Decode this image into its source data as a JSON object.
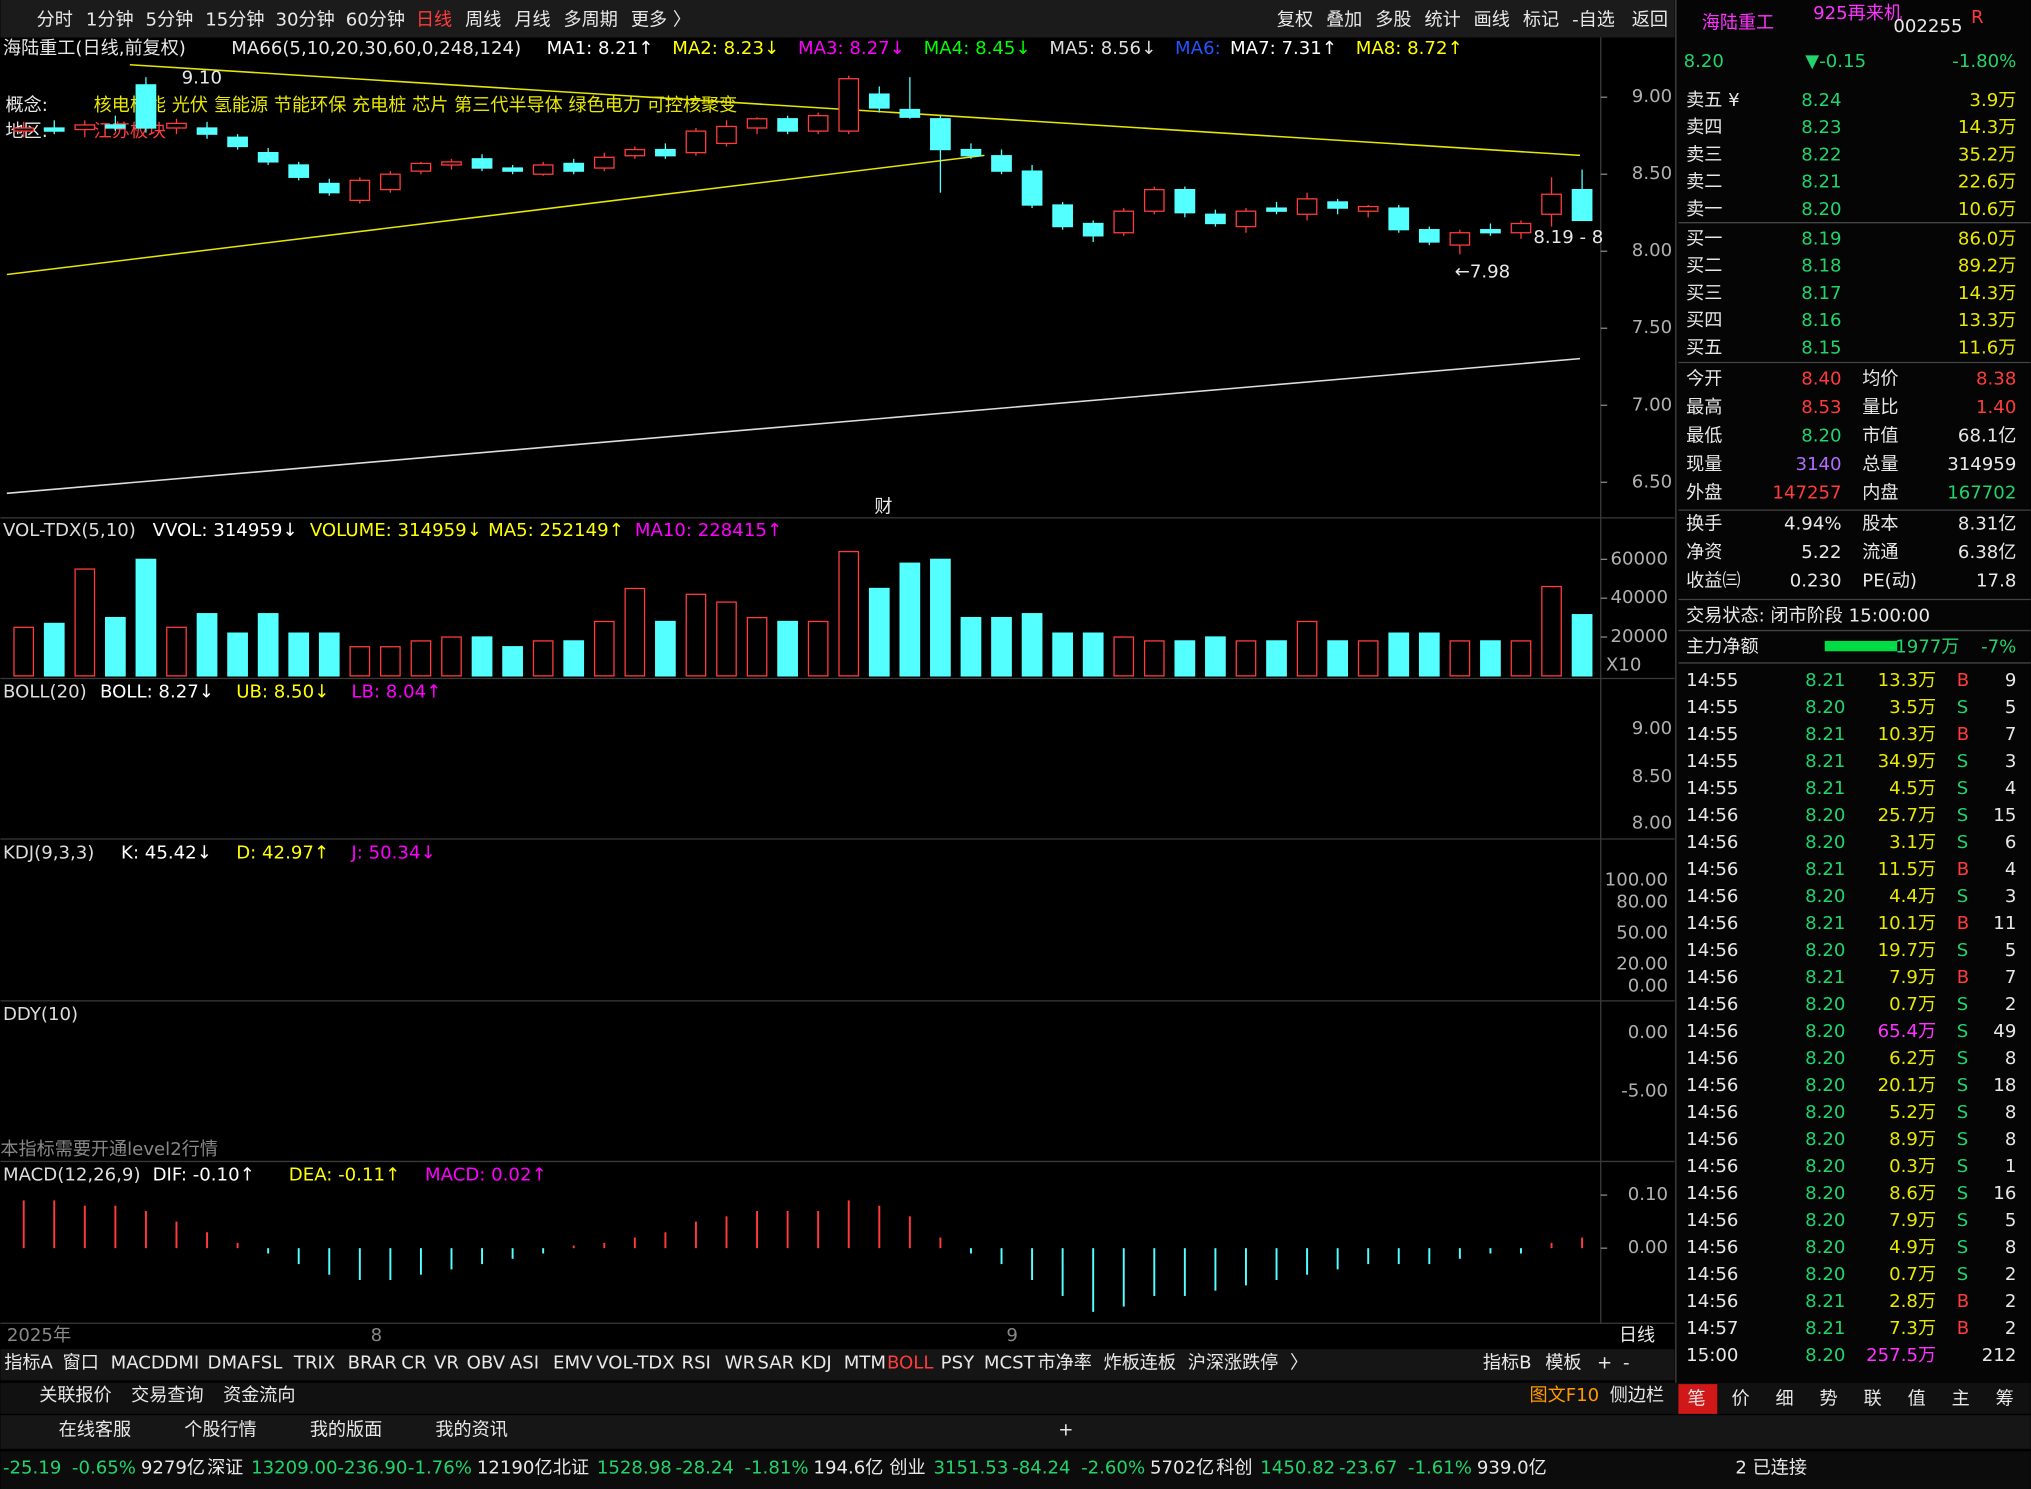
{
  "toolbar": {
    "periods": [
      "分时",
      "1分钟",
      "5分钟",
      "15分钟",
      "30分钟",
      "60分钟",
      "日线",
      "周线",
      "月线",
      "多周期",
      "更多 〉"
    ],
    "active": 6,
    "tools": [
      "复权",
      "叠加",
      "多股",
      "统计",
      "画线",
      "标记",
      "-自选",
      "返回"
    ]
  },
  "price_chart": {
    "title": "海陆重工(日线,前复权)",
    "ma_params": "MA66(5,10,20,30,60,0,248,124)",
    "ma": [
      {
        "text": "MA1: 8.21↑",
        "color": "#ffffff"
      },
      {
        "text": "MA2: 8.23↓",
        "color": "#ffff00"
      },
      {
        "text": "MA3: 8.27↓",
        "color": "#ff00ff"
      },
      {
        "text": "MA4: 8.45↓",
        "color": "#00ff00"
      },
      {
        "text": "MA5: 8.56↓",
        "color": "#dddddd"
      },
      {
        "text": "MA6:",
        "color": "#2255ff"
      },
      {
        "text": "MA7: 7.31↑",
        "color": "#ffffff"
      },
      {
        "text": "MA8: 8.72↑",
        "color": "#ffff00"
      }
    ],
    "concept_label": "概念:",
    "concepts": "核电核能 光伏 氢能源 节能环保 充电桩 芯片 第三代半导体 绿色电力 可控核聚变",
    "region_label": "地区:",
    "region": "江苏板块",
    "annotations": {
      "high": "9.10",
      "low": "←7.98",
      "last": "8.19 - 8",
      "finance": "财"
    },
    "open": [
      8.78,
      8.8,
      8.79,
      8.82,
      9.08,
      8.8,
      8.8,
      8.74,
      8.64,
      8.56,
      8.44,
      8.33,
      8.4,
      8.52,
      8.56,
      8.6,
      8.54,
      8.5,
      8.57,
      8.54,
      8.62,
      8.66,
      8.64,
      8.7,
      8.8,
      8.86,
      8.78,
      8.78,
      9.02,
      8.92,
      8.86,
      8.66,
      8.62,
      8.52,
      8.3,
      8.18,
      8.12,
      8.26,
      8.4,
      8.24,
      8.16,
      8.28,
      8.24,
      8.32,
      8.26,
      8.28,
      8.14,
      8.04,
      8.14,
      8.12,
      8.24,
      8.4
    ],
    "high": [
      8.84,
      8.85,
      8.85,
      8.88,
      9.13,
      8.86,
      8.84,
      8.76,
      8.67,
      8.58,
      8.47,
      8.48,
      8.52,
      8.58,
      8.6,
      8.63,
      8.56,
      8.58,
      8.6,
      8.64,
      8.68,
      8.7,
      8.8,
      8.85,
      8.87,
      8.88,
      8.9,
      9.14,
      9.07,
      9.13,
      8.88,
      8.7,
      8.66,
      8.56,
      8.32,
      8.2,
      8.28,
      8.42,
      8.42,
      8.27,
      8.28,
      8.32,
      8.38,
      8.34,
      8.3,
      8.3,
      8.16,
      8.14,
      8.18,
      8.2,
      8.48,
      8.53
    ],
    "low": [
      8.74,
      8.76,
      8.74,
      8.78,
      8.77,
      8.76,
      8.73,
      8.66,
      8.56,
      8.46,
      8.36,
      8.31,
      8.38,
      8.5,
      8.53,
      8.52,
      8.5,
      8.49,
      8.5,
      8.52,
      8.6,
      8.6,
      8.62,
      8.68,
      8.76,
      8.76,
      8.76,
      8.76,
      8.9,
      8.86,
      8.38,
      8.6,
      8.5,
      8.28,
      8.14,
      8.06,
      8.1,
      8.24,
      8.22,
      8.16,
      8.12,
      8.24,
      8.2,
      8.24,
      8.22,
      8.12,
      8.04,
      7.98,
      8.1,
      8.08,
      8.16,
      8.2
    ],
    "close": [
      8.8,
      8.78,
      8.82,
      8.8,
      8.8,
      8.83,
      8.76,
      8.68,
      8.58,
      8.48,
      8.38,
      8.46,
      8.5,
      8.57,
      8.58,
      8.54,
      8.52,
      8.56,
      8.52,
      8.61,
      8.66,
      8.62,
      8.78,
      8.81,
      8.86,
      8.78,
      8.88,
      9.12,
      8.93,
      8.87,
      8.66,
      8.62,
      8.52,
      8.3,
      8.16,
      8.1,
      8.26,
      8.4,
      8.25,
      8.18,
      8.26,
      8.26,
      8.34,
      8.28,
      8.29,
      8.14,
      8.06,
      8.12,
      8.12,
      8.18,
      8.37,
      8.2
    ],
    "ylim": [
      6.42,
      9.32
    ],
    "yticks": [
      {
        "value": 6.5,
        "label": "6.50"
      },
      {
        "value": 7,
        "label": "7.00"
      },
      {
        "value": 7.5,
        "label": "7.50"
      },
      {
        "value": 8,
        "label": "8.00"
      },
      {
        "value": 8.5,
        "label": "8.50"
      },
      {
        "value": 9,
        "label": "9.00"
      }
    ]
  },
  "volume": {
    "header": [
      {
        "text": "VOL-TDX(5,10)",
        "color": "#dddddd"
      },
      {
        "text": "VVOL: 314959↓",
        "color": "#ffffff"
      },
      {
        "text": "VOLUME: 314959↓",
        "color": "#ffff00"
      },
      {
        "text": "MA5: 252149↑",
        "color": "#ffff00"
      },
      {
        "text": "MA10: 228415↑",
        "color": "#ff00ff"
      }
    ],
    "values": [
      25000,
      27000,
      55000,
      30000,
      60000,
      25000,
      32000,
      22000,
      32000,
      22000,
      22000,
      15000,
      15000,
      18000,
      20000,
      20000,
      15000,
      18000,
      18000,
      28000,
      45000,
      28000,
      42000,
      38000,
      30000,
      28000,
      28000,
      64000,
      45000,
      58000,
      60000,
      30000,
      30000,
      32000,
      22000,
      22000,
      20000,
      18000,
      18000,
      20000,
      18000,
      18000,
      28000,
      18000,
      18000,
      22000,
      22000,
      18000,
      18000,
      18000,
      46000,
      31496
    ],
    "ylim": [
      0,
      66000
    ],
    "yticks": [
      20000,
      40000,
      60000
    ],
    "multiplier": "X10"
  },
  "boll": {
    "header": [
      {
        "text": "BOLL(20)",
        "color": "#dddddd"
      },
      {
        "text": "BOLL: 8.27↓",
        "color": "#ffffff"
      },
      {
        "text": "UB: 8.50↓",
        "color": "#ffff00"
      },
      {
        "text": "LB: 8.04↑",
        "color": "#ff00ff"
      }
    ],
    "ticks": [
      "9.00",
      "8.50",
      "8.00"
    ]
  },
  "kdj": {
    "header": [
      {
        "text": "KDJ(9,3,3)",
        "color": "#dddddd"
      },
      {
        "text": "K: 45.42↓",
        "color": "#ffffff"
      },
      {
        "text": "D: 42.97↑",
        "color": "#ffff00"
      },
      {
        "text": "J: 50.34↓",
        "color": "#ff00ff"
      }
    ],
    "ticks": [
      "100.00",
      "80.00",
      "50.00",
      "20.00",
      "0.00"
    ]
  },
  "ddy": {
    "header": [
      {
        "text": "DDY(10)",
        "color": "#dddddd"
      }
    ],
    "ticks": [
      "0.00",
      "-5.00"
    ],
    "notice": "本指标需要开通level2行情"
  },
  "macd": {
    "header": [
      {
        "text": "MACD(12,26,9)",
        "color": "#dddddd"
      },
      {
        "text": "DIF: -0.10↑",
        "color": "#ffffff"
      },
      {
        "text": "DEA: -0.11↑",
        "color": "#ffff00"
      },
      {
        "text": "MACD: 0.02↑",
        "color": "#ff00ff"
      }
    ],
    "values": [
      0.09,
      0.09,
      0.08,
      0.08,
      0.07,
      0.05,
      0.03,
      0.01,
      -0.01,
      -0.03,
      -0.05,
      -0.06,
      -0.06,
      -0.05,
      -0.04,
      -0.03,
      -0.02,
      -0.01,
      0.005,
      0.01,
      0.02,
      0.03,
      0.05,
      0.06,
      0.07,
      0.07,
      0.07,
      0.09,
      0.08,
      0.06,
      0.02,
      -0.01,
      -0.03,
      -0.06,
      -0.09,
      -0.12,
      -0.11,
      -0.09,
      -0.09,
      -0.08,
      -0.07,
      -0.06,
      -0.05,
      -0.04,
      -0.03,
      -0.03,
      -0.03,
      -0.02,
      -0.01,
      -0.01,
      0.01,
      0.02
    ],
    "ylim": [
      -0.14,
      0.15
    ],
    "yticks": [
      {
        "value": 0,
        "label": "0.00"
      },
      {
        "value": 0.1,
        "label": "0.10"
      }
    ]
  },
  "x_axis": {
    "year": "2025年",
    "months": [
      "8",
      "9"
    ],
    "period": "日线"
  },
  "indicator_tabs": {
    "items": [
      "指标A",
      "窗口",
      "MACD",
      "DMI",
      "DMA",
      "FSL",
      "TRIX",
      "BRAR",
      "CR",
      "VR",
      "OBV",
      "ASI",
      "EMV",
      "VOL-TDX",
      "RSI",
      "WR",
      "SAR",
      "KDJ",
      "MTM",
      "BOLL",
      "PSY",
      "MCST",
      "市净率",
      "炸板连板",
      "沪深涨跌停",
      "〉"
    ],
    "active": 19,
    "right": [
      "指标B",
      "模板",
      "+",
      "-"
    ]
  },
  "bottom_links": [
    "关联报价",
    "交易查询",
    "资金流向"
  ],
  "bottom_right": [
    "图文F10",
    "侧边栏"
  ],
  "service_links": [
    "在线客服",
    "个股行情",
    "我的版面",
    "我的资讯"
  ],
  "status_bar": [
    {
      "text": "-25.19",
      "tone": "down"
    },
    {
      "text": "-0.65%",
      "tone": "down"
    },
    {
      "text": "9279亿",
      "tone": "flat"
    },
    {
      "text": "深证",
      "tone": "flat"
    },
    {
      "text": "13209.00-236.90",
      "tone": "down"
    },
    {
      "text": "-1.76%",
      "tone": "down"
    },
    {
      "text": "12190亿",
      "tone": "flat"
    },
    {
      "text": "北证",
      "tone": "flat"
    },
    {
      "text": "1528.98",
      "tone": "down"
    },
    {
      "text": "-28.24",
      "tone": "down"
    },
    {
      "text": "-1.81%",
      "tone": "down"
    },
    {
      "text": "194.6亿",
      "tone": "flat"
    },
    {
      "text": "创业",
      "tone": "flat"
    },
    {
      "text": "3151.53",
      "tone": "down"
    },
    {
      "text": "-84.24",
      "tone": "down"
    },
    {
      "text": "-2.60%",
      "tone": "down"
    },
    {
      "text": "5702亿",
      "tone": "flat"
    },
    {
      "text": "科创",
      "tone": "flat"
    },
    {
      "text": "1450.82",
      "tone": "down"
    },
    {
      "text": "-23.67",
      "tone": "down"
    },
    {
      "text": "-1.61%",
      "tone": "down"
    },
    {
      "text": "939.0亿",
      "tone": "flat"
    }
  ],
  "connection": "2 已连接",
  "quote": {
    "name": "海陆重工",
    "tag": "925再来机",
    "code": "002255",
    "flag": "R",
    "price": "8.20",
    "change": "▼-0.15",
    "change_pct": "-1.80%",
    "asks": [
      {
        "label": "卖五 ¥",
        "price": "8.24",
        "volume": "3.9万"
      },
      {
        "label": "卖四",
        "price": "8.23",
        "volume": "14.3万"
      },
      {
        "label": "卖三",
        "price": "8.22",
        "volume": "35.2万"
      },
      {
        "label": "卖二",
        "price": "8.21",
        "volume": "22.6万"
      },
      {
        "label": "卖一",
        "price": "8.20",
        "volume": "10.6万"
      }
    ],
    "bids": [
      {
        "label": "买一",
        "price": "8.19",
        "volume": "86.0万"
      },
      {
        "label": "买二",
        "price": "8.18",
        "volume": "89.2万"
      },
      {
        "label": "买三",
        "price": "8.17",
        "volume": "14.3万"
      },
      {
        "label": "买四",
        "price": "8.16",
        "volume": "13.3万"
      },
      {
        "label": "买五",
        "price": "8.15",
        "volume": "11.6万"
      }
    ],
    "stats": [
      [
        {
          "label": "今开",
          "value": "8.40",
          "tone": "up"
        },
        {
          "label": "均价",
          "value": "8.38",
          "tone": "up"
        }
      ],
      [
        {
          "label": "最高",
          "value": "8.53",
          "tone": "up"
        },
        {
          "label": "量比",
          "value": "1.40",
          "tone": "up"
        }
      ],
      [
        {
          "label": "最低",
          "value": "8.20",
          "tone": "down"
        },
        {
          "label": "市值",
          "value": "68.1亿",
          "tone": "flat"
        }
      ],
      [
        {
          "label": "现量",
          "value": "3140",
          "tone": "vol"
        },
        {
          "label": "总量",
          "value": "314959",
          "tone": "flat"
        }
      ],
      [
        {
          "label": "外盘",
          "value": "147257",
          "tone": "up"
        },
        {
          "label": "内盘",
          "value": "167702",
          "tone": "down"
        }
      ],
      [
        {
          "label": "换手",
          "value": "4.94%",
          "tone": "flat"
        },
        {
          "label": "股本",
          "value": "8.31亿",
          "tone": "flat"
        }
      ],
      [
        {
          "label": "净资",
          "value": "5.22",
          "tone": "flat"
        },
        {
          "label": "流通",
          "value": "6.38亿",
          "tone": "flat"
        }
      ],
      [
        {
          "label": "收益㈢",
          "value": "0.230",
          "tone": "flat"
        },
        {
          "label": "PE(动)",
          "value": "17.8",
          "tone": "flat"
        }
      ]
    ],
    "trade_status": "交易状态: 闭市阶段 15:00:00",
    "main_flow": {
      "label": "主力净额",
      "value": "-1977万",
      "pct": "-7%"
    },
    "ticks": [
      {
        "time": "14:55",
        "price": "8.21",
        "volume": "13.3万",
        "side": "B",
        "count": "9"
      },
      {
        "time": "14:55",
        "price": "8.20",
        "volume": "3.5万",
        "side": "S",
        "count": "5"
      },
      {
        "time": "14:55",
        "price": "8.21",
        "volume": "10.3万",
        "side": "B",
        "count": "7"
      },
      {
        "time": "14:55",
        "price": "8.21",
        "volume": "34.9万",
        "side": "S",
        "count": "3"
      },
      {
        "time": "14:55",
        "price": "8.21",
        "volume": "4.5万",
        "side": "S",
        "count": "4"
      },
      {
        "time": "14:56",
        "price": "8.20",
        "volume": "25.7万",
        "side": "S",
        "count": "15"
      },
      {
        "time": "14:56",
        "price": "8.20",
        "volume": "3.1万",
        "side": "S",
        "count": "6"
      },
      {
        "time": "14:56",
        "price": "8.21",
        "volume": "11.5万",
        "side": "B",
        "count": "4"
      },
      {
        "time": "14:56",
        "price": "8.20",
        "volume": "4.4万",
        "side": "S",
        "count": "3"
      },
      {
        "time": "14:56",
        "price": "8.21",
        "volume": "10.1万",
        "side": "B",
        "count": "11"
      },
      {
        "time": "14:56",
        "price": "8.20",
        "volume": "19.7万",
        "side": "S",
        "count": "5"
      },
      {
        "time": "14:56",
        "price": "8.21",
        "volume": "7.9万",
        "side": "B",
        "count": "7"
      },
      {
        "time": "14:56",
        "price": "8.20",
        "volume": "0.7万",
        "side": "S",
        "count": "2"
      },
      {
        "time": "14:56",
        "price": "8.20",
        "volume": "65.4万",
        "side": "S",
        "count": "49",
        "tone": "big"
      },
      {
        "time": "14:56",
        "price": "8.20",
        "volume": "6.2万",
        "side": "S",
        "count": "8"
      },
      {
        "time": "14:56",
        "price": "8.20",
        "volume": "20.1万",
        "side": "S",
        "count": "18"
      },
      {
        "time": "14:56",
        "price": "8.20",
        "volume": "5.2万",
        "side": "S",
        "count": "8"
      },
      {
        "time": "14:56",
        "price": "8.20",
        "volume": "8.9万",
        "side": "S",
        "count": "8"
      },
      {
        "time": "14:56",
        "price": "8.20",
        "volume": "0.3万",
        "side": "S",
        "count": "1"
      },
      {
        "time": "14:56",
        "price": "8.20",
        "volume": "8.6万",
        "side": "S",
        "count": "16"
      },
      {
        "time": "14:56",
        "price": "8.20",
        "volume": "7.9万",
        "side": "S",
        "count": "5"
      },
      {
        "time": "14:56",
        "price": "8.20",
        "volume": "4.9万",
        "side": "S",
        "count": "8"
      },
      {
        "time": "14:56",
        "price": "8.20",
        "volume": "0.7万",
        "side": "S",
        "count": "2"
      },
      {
        "time": "14:56",
        "price": "8.21",
        "volume": "2.8万",
        "side": "B",
        "count": "2"
      },
      {
        "time": "14:57",
        "price": "8.21",
        "volume": "7.3万",
        "side": "B",
        "count": "2"
      },
      {
        "time": "15:00",
        "price": "8.20",
        "volume": "257.5万",
        "count": "212",
        "tone": "big"
      }
    ],
    "tabs": [
      "笔",
      "价",
      "细",
      "势",
      "联",
      "值",
      "主",
      "筹"
    ],
    "active_tab": 0
  }
}
